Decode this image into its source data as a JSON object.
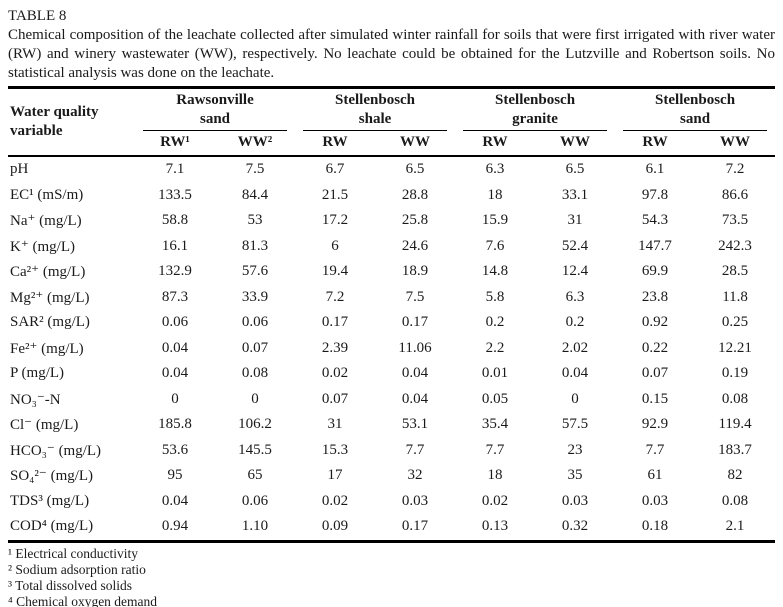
{
  "table_label": "TABLE 8",
  "caption": "Chemical composition of the leachate collected after simulated winter rainfall for soils that were first irrigated with river water (RW) and winery wastewater (WW), respectively. No leachate could be obtained for the Lutzville and Robertson soils. No statistical analysis was done on the leachate.",
  "header": {
    "row_label_lines": [
      "Water quality",
      "variable"
    ],
    "groups": [
      {
        "line1": "Rawsonville",
        "line2": "sand",
        "cols": [
          "RW¹",
          "WW²"
        ]
      },
      {
        "line1": "Stellenbosch",
        "line2": "shale",
        "cols": [
          "RW",
          "WW"
        ]
      },
      {
        "line1": "Stellenbosch",
        "line2": "granite",
        "cols": [
          "RW",
          "WW"
        ]
      },
      {
        "line1": "Stellenbosch",
        "line2": "sand",
        "cols": [
          "RW",
          "WW"
        ]
      }
    ]
  },
  "rows": [
    {
      "variable": "pH",
      "values": [
        "7.1",
        "7.5",
        "6.7",
        "6.5",
        "6.3",
        "6.5",
        "6.1",
        "7.2"
      ]
    },
    {
      "variable": "EC¹ (mS/m)",
      "values": [
        "133.5",
        "84.4",
        "21.5",
        "28.8",
        "18",
        "33.1",
        "97.8",
        "86.6"
      ]
    },
    {
      "variable": "Na⁺ (mg/L)",
      "values": [
        "58.8",
        "53",
        "17.2",
        "25.8",
        "15.9",
        "31",
        "54.3",
        "73.5"
      ]
    },
    {
      "variable": "K⁺ (mg/L)",
      "values": [
        "16.1",
        "81.3",
        "6",
        "24.6",
        "7.6",
        "52.4",
        "147.7",
        "242.3"
      ]
    },
    {
      "variable": "Ca²⁺ (mg/L)",
      "values": [
        "132.9",
        "57.6",
        "19.4",
        "18.9",
        "14.8",
        "12.4",
        "69.9",
        "28.5"
      ]
    },
    {
      "variable": "Mg²⁺ (mg/L)",
      "values": [
        "87.3",
        "33.9",
        "7.2",
        "7.5",
        "5.8",
        "6.3",
        "23.8",
        "11.8"
      ]
    },
    {
      "variable": "SAR² (mg/L)",
      "values": [
        "0.06",
        "0.06",
        "0.17",
        "0.17",
        "0.2",
        "0.2",
        "0.92",
        "0.25"
      ]
    },
    {
      "variable": "Fe²⁺ (mg/L)",
      "values": [
        "0.04",
        "0.07",
        "2.39",
        "11.06",
        "2.2",
        "2.02",
        "0.22",
        "12.21"
      ]
    },
    {
      "variable": "P (mg/L)",
      "values": [
        "0.04",
        "0.08",
        "0.02",
        "0.04",
        "0.01",
        "0.04",
        "0.07",
        "0.19"
      ]
    },
    {
      "variable": "NO₃⁻-N",
      "values": [
        "0",
        "0",
        "0.07",
        "0.04",
        "0.05",
        "0",
        "0.15",
        "0.08"
      ]
    },
    {
      "variable": "Cl⁻ (mg/L)",
      "values": [
        "185.8",
        "106.2",
        "31",
        "53.1",
        "35.4",
        "57.5",
        "92.9",
        "119.4"
      ]
    },
    {
      "variable": "HCO₃⁻ (mg/L)",
      "values": [
        "53.6",
        "145.5",
        "15.3",
        "7.7",
        "7.7",
        "23",
        "7.7",
        "183.7"
      ]
    },
    {
      "variable": "SO₄²⁻ (mg/L)",
      "values": [
        "95",
        "65",
        "17",
        "32",
        "18",
        "35",
        "61",
        "82"
      ]
    },
    {
      "variable": "TDS³ (mg/L)",
      "values": [
        "0.04",
        "0.06",
        "0.02",
        "0.03",
        "0.02",
        "0.03",
        "0.03",
        "0.08"
      ]
    },
    {
      "variable": "COD⁴ (mg/L)",
      "values": [
        "0.94",
        "1.10",
        "0.09",
        "0.17",
        "0.13",
        "0.32",
        "0.18",
        "2.1"
      ]
    }
  ],
  "footnotes": [
    "¹ Electrical conductivity",
    "² Sodium adsorption ratio",
    "³ Total dissolved solids",
    "⁴ Chemical oxygen demand"
  ]
}
